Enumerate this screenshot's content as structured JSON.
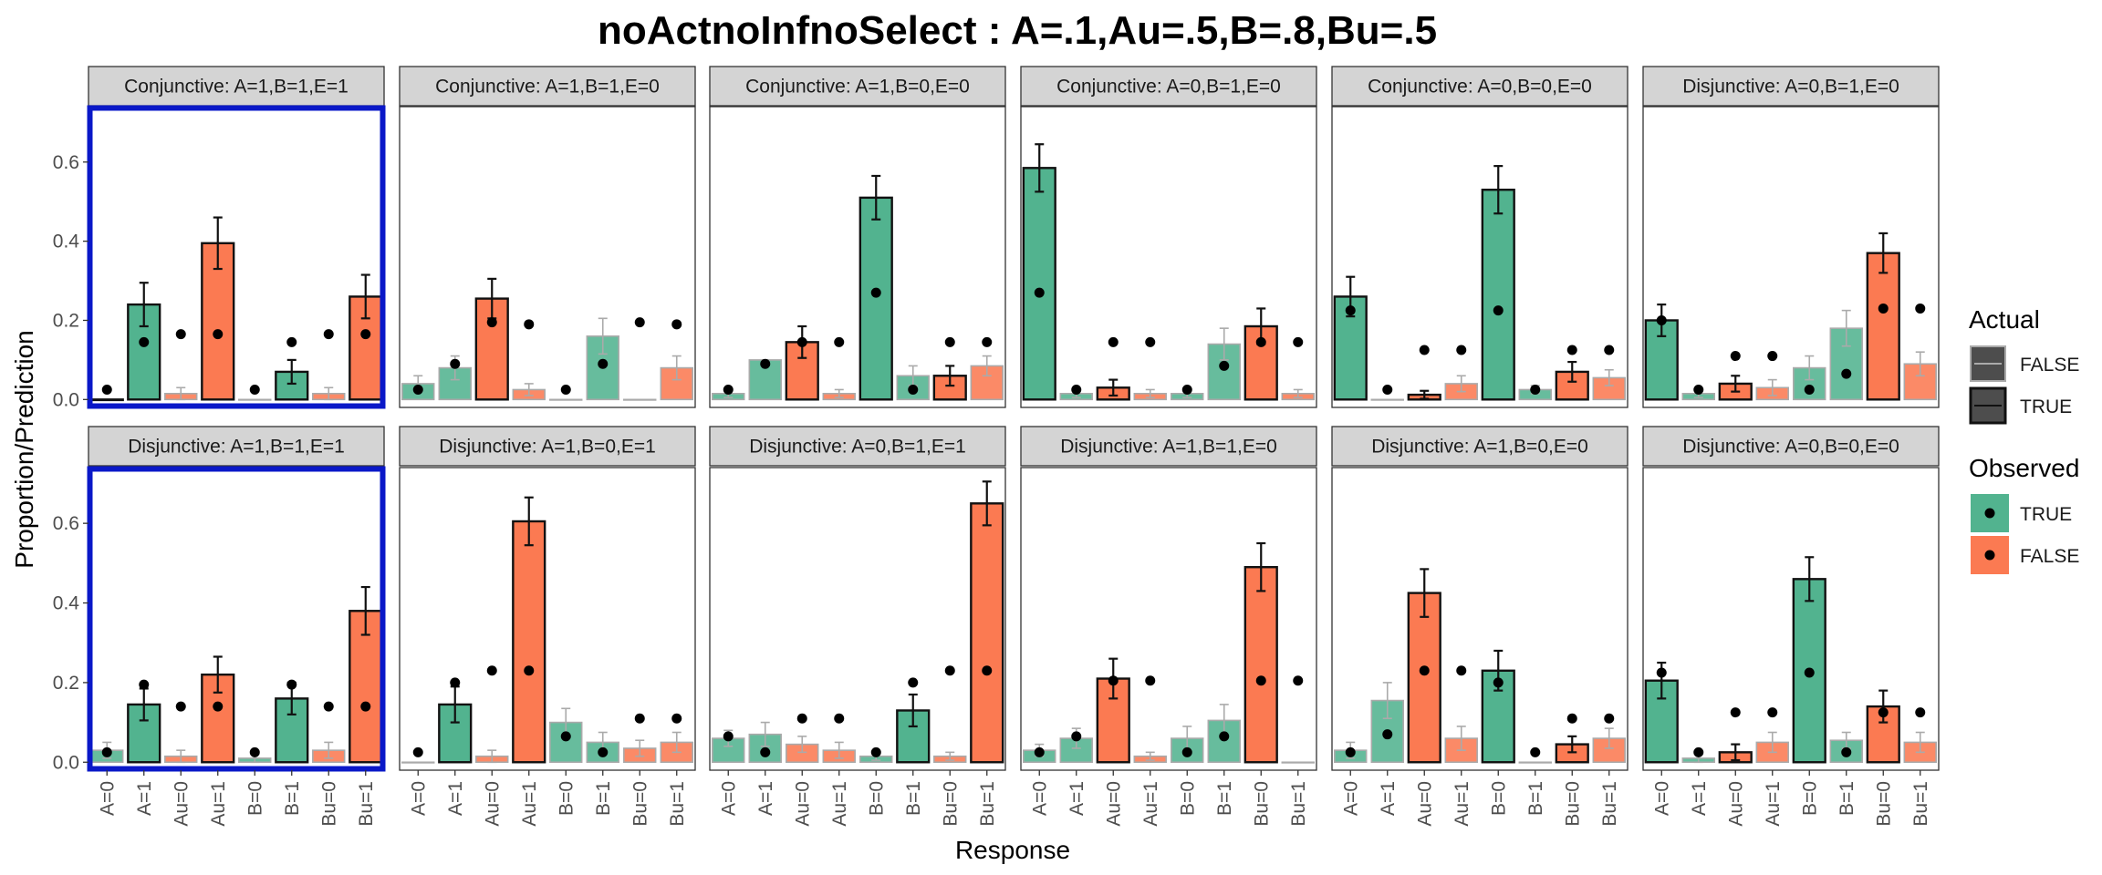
{
  "colors": {
    "observed_true": "#52b38f",
    "observed_false": "#fb7a52",
    "outline_true": "#111111",
    "outline_false": "#aaaaaa",
    "strip_fill": "#d4d4d4",
    "highlight": "#0a18c8",
    "point": "#000000"
  },
  "chart_data": {
    "type": "bar",
    "title": "noActnoInfnoSelect : A=.1,Au=.5,B=.8,Bu=.5",
    "xlabel": "Response",
    "ylabel": "Proportion/Prediction",
    "ylim": [
      -0.02,
      0.74
    ],
    "yticks": [
      0.0,
      0.2,
      0.4,
      0.6
    ],
    "ytick_labels": [
      "0.0",
      "0.2",
      "0.4",
      "0.6"
    ],
    "categories": [
      "A=0",
      "A=1",
      "Au=0",
      "Au=1",
      "B=0",
      "B=1",
      "Bu=0",
      "Bu=1"
    ],
    "observed_category": [
      "TRUE",
      "TRUE",
      "FALSE",
      "FALSE",
      "TRUE",
      "TRUE",
      "FALSE",
      "FALSE"
    ],
    "grid": false,
    "legend": {
      "placement": "right",
      "actual_title": "Actual",
      "actual_items": [
        "FALSE",
        "TRUE"
      ],
      "observed_title": "Observed",
      "observed_items": [
        "TRUE",
        "FALSE"
      ]
    },
    "panels": [
      {
        "label": "Conjunctive: A=1,B=1,E=1",
        "highlight": true,
        "bars": [
          0.0,
          0.24,
          0.015,
          0.395,
          0.0,
          0.07,
          0.015,
          0.26
        ],
        "err": [
          0.0,
          0.055,
          0.015,
          0.065,
          0.0,
          0.03,
          0.015,
          0.055
        ],
        "actual": [
          true,
          true,
          false,
          true,
          false,
          true,
          false,
          true
        ],
        "points": [
          0.025,
          0.145,
          0.165,
          0.165,
          0.025,
          0.145,
          0.165,
          0.165
        ]
      },
      {
        "label": "Conjunctive: A=1,B=1,E=0",
        "highlight": false,
        "bars": [
          0.04,
          0.08,
          0.255,
          0.025,
          0.0,
          0.16,
          0.0,
          0.08
        ],
        "err": [
          0.02,
          0.03,
          0.05,
          0.015,
          0.0,
          0.045,
          0.0,
          0.03
        ],
        "actual": [
          false,
          false,
          true,
          false,
          false,
          false,
          false,
          false
        ],
        "points": [
          0.025,
          0.09,
          0.195,
          0.19,
          0.025,
          0.09,
          0.195,
          0.19
        ]
      },
      {
        "label": "Conjunctive: A=1,B=0,E=0",
        "highlight": false,
        "bars": [
          0.015,
          0.1,
          0.145,
          0.015,
          0.51,
          0.06,
          0.06,
          0.085
        ],
        "err": [
          0.01,
          0.0,
          0.04,
          0.01,
          0.055,
          0.025,
          0.025,
          0.025
        ],
        "actual": [
          false,
          false,
          true,
          false,
          true,
          false,
          true,
          false
        ],
        "points": [
          0.025,
          0.09,
          0.145,
          0.145,
          0.27,
          0.025,
          0.145,
          0.145
        ]
      },
      {
        "label": "Conjunctive: A=0,B=1,E=0",
        "highlight": false,
        "bars": [
          0.585,
          0.015,
          0.03,
          0.015,
          0.015,
          0.14,
          0.185,
          0.015
        ],
        "err": [
          0.06,
          0.01,
          0.02,
          0.01,
          0.01,
          0.04,
          0.045,
          0.01
        ],
        "actual": [
          true,
          false,
          true,
          false,
          false,
          false,
          true,
          false
        ],
        "points": [
          0.27,
          0.025,
          0.145,
          0.145,
          0.025,
          0.085,
          0.145,
          0.145
        ]
      },
      {
        "label": "Conjunctive: A=0,B=0,E=0",
        "highlight": false,
        "bars": [
          0.26,
          0.0,
          0.012,
          0.04,
          0.53,
          0.025,
          0.07,
          0.055
        ],
        "err": [
          0.05,
          0.0,
          0.01,
          0.02,
          0.06,
          0.01,
          0.025,
          0.02
        ],
        "actual": [
          true,
          false,
          true,
          false,
          true,
          false,
          true,
          false
        ],
        "points": [
          0.225,
          0.025,
          0.125,
          0.125,
          0.225,
          0.025,
          0.125,
          0.125
        ]
      },
      {
        "label": "Disjunctive: A=0,B=1,E=0",
        "highlight": false,
        "bars": [
          0.2,
          0.015,
          0.04,
          0.03,
          0.08,
          0.18,
          0.37,
          0.09
        ],
        "err": [
          0.04,
          0.01,
          0.02,
          0.02,
          0.03,
          0.045,
          0.05,
          0.03
        ],
        "actual": [
          true,
          false,
          true,
          false,
          false,
          false,
          true,
          false
        ],
        "points": [
          0.2,
          0.025,
          0.11,
          0.11,
          0.025,
          0.065,
          0.23,
          0.23
        ]
      },
      {
        "label": "Disjunctive: A=1,B=1,E=1",
        "highlight": true,
        "bars": [
          0.03,
          0.145,
          0.015,
          0.22,
          0.01,
          0.16,
          0.03,
          0.38
        ],
        "err": [
          0.02,
          0.04,
          0.015,
          0.045,
          0.01,
          0.04,
          0.02,
          0.06
        ],
        "actual": [
          false,
          true,
          false,
          true,
          false,
          true,
          false,
          true
        ],
        "points": [
          0.025,
          0.195,
          0.14,
          0.14,
          0.025,
          0.195,
          0.14,
          0.14
        ]
      },
      {
        "label": "Disjunctive: A=1,B=0,E=1",
        "highlight": false,
        "bars": [
          0.0,
          0.145,
          0.015,
          0.605,
          0.1,
          0.05,
          0.035,
          0.05
        ],
        "err": [
          0.0,
          0.045,
          0.015,
          0.06,
          0.035,
          0.025,
          0.02,
          0.025
        ],
        "actual": [
          false,
          true,
          false,
          true,
          false,
          false,
          false,
          false
        ],
        "points": [
          0.025,
          0.2,
          0.23,
          0.23,
          0.065,
          0.025,
          0.11,
          0.11
        ]
      },
      {
        "label": "Disjunctive: A=0,B=1,E=1",
        "highlight": false,
        "bars": [
          0.06,
          0.07,
          0.045,
          0.03,
          0.015,
          0.13,
          0.015,
          0.65
        ],
        "err": [
          0.02,
          0.03,
          0.02,
          0.02,
          0.01,
          0.04,
          0.01,
          0.055
        ],
        "actual": [
          false,
          false,
          false,
          false,
          false,
          true,
          false,
          true
        ],
        "points": [
          0.065,
          0.025,
          0.11,
          0.11,
          0.025,
          0.2,
          0.23,
          0.23
        ]
      },
      {
        "label": "Disjunctive: A=1,B=1,E=0",
        "highlight": false,
        "bars": [
          0.03,
          0.06,
          0.21,
          0.015,
          0.06,
          0.105,
          0.49,
          0.0
        ],
        "err": [
          0.015,
          0.025,
          0.05,
          0.01,
          0.03,
          0.04,
          0.06,
          0.0
        ],
        "actual": [
          false,
          false,
          true,
          false,
          false,
          false,
          true,
          false
        ],
        "points": [
          0.025,
          0.065,
          0.205,
          0.205,
          0.025,
          0.065,
          0.205,
          0.205
        ]
      },
      {
        "label": "Disjunctive: A=1,B=0,E=0",
        "highlight": false,
        "bars": [
          0.03,
          0.155,
          0.425,
          0.06,
          0.23,
          0.0,
          0.045,
          0.06
        ],
        "err": [
          0.02,
          0.045,
          0.06,
          0.03,
          0.05,
          0.0,
          0.02,
          0.025
        ],
        "actual": [
          false,
          false,
          true,
          false,
          true,
          false,
          true,
          false
        ],
        "points": [
          0.025,
          0.07,
          0.23,
          0.23,
          0.2,
          0.025,
          0.11,
          0.11
        ]
      },
      {
        "label": "Disjunctive: A=0,B=0,E=0",
        "highlight": false,
        "bars": [
          0.205,
          0.01,
          0.025,
          0.05,
          0.46,
          0.055,
          0.14,
          0.05
        ],
        "err": [
          0.045,
          0.01,
          0.02,
          0.025,
          0.055,
          0.02,
          0.04,
          0.025
        ],
        "actual": [
          true,
          false,
          true,
          false,
          true,
          false,
          true,
          false
        ],
        "points": [
          0.225,
          0.025,
          0.125,
          0.125,
          0.225,
          0.025,
          0.125,
          0.125
        ]
      }
    ]
  }
}
